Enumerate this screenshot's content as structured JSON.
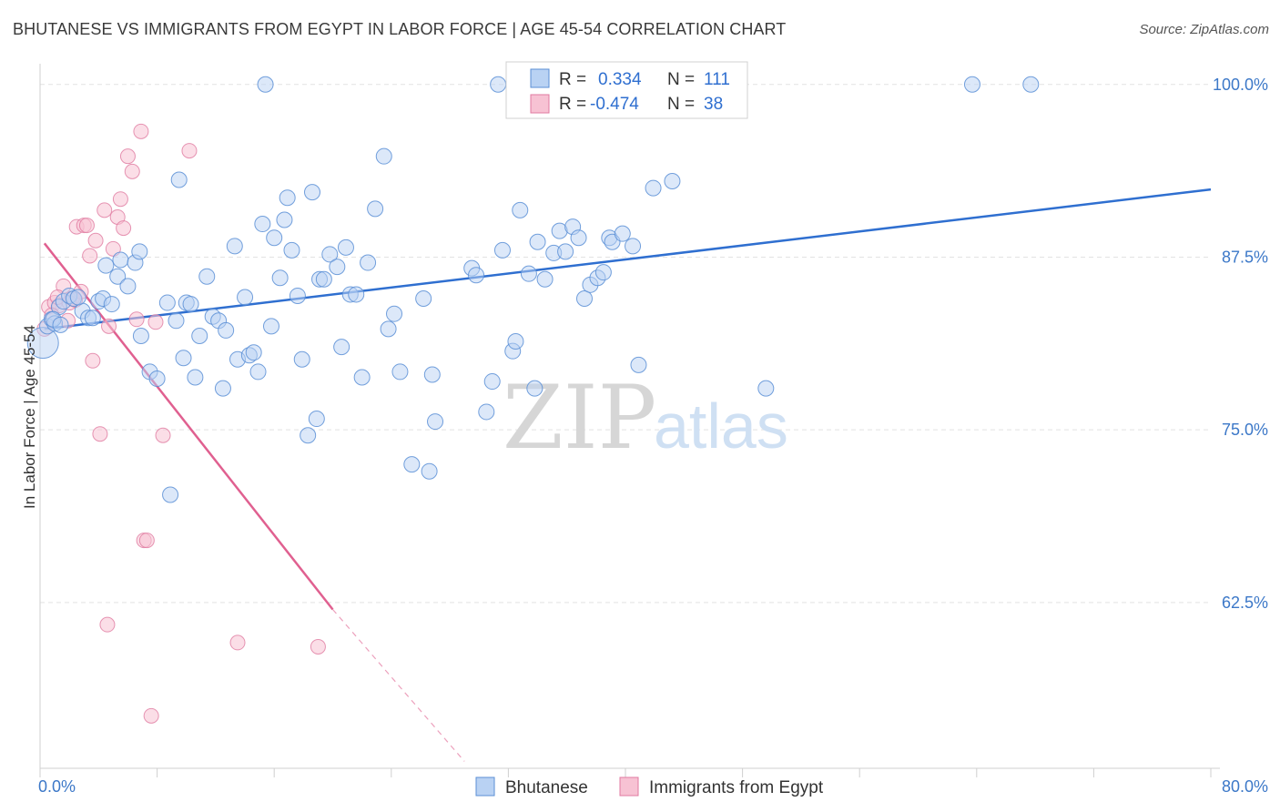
{
  "title": "BHUTANESE VS IMMIGRANTS FROM EGYPT IN LABOR FORCE | AGE 45-54 CORRELATION CHART",
  "source": "Source: ZipAtlas.com",
  "watermark": {
    "zip": "ZIP",
    "atlas": "atlas"
  },
  "colors": {
    "blue": "#5b8fd6",
    "blue_fill": "#b9d2f3",
    "pink": "#e07aa0",
    "pink_fill": "#f7c2d3",
    "blue_line": "#2f6fd0",
    "pink_line": "#e06090"
  },
  "legend": {
    "rows": [
      {
        "r_label": "R =",
        "r_value": "0.334",
        "n_label": "N =",
        "n_value": "111"
      },
      {
        "r_label": "R =",
        "r_value": "-0.474",
        "n_label": "N =",
        "n_value": "38"
      }
    ]
  },
  "chart_data": {
    "type": "scatter",
    "xlabel": "",
    "ylabel": "In Labor Force | Age 45-54",
    "xlim": [
      0,
      80
    ],
    "ylim": [
      50.5,
      101.5
    ],
    "x_tick_labels": [
      "0.0%",
      "80.0%"
    ],
    "y_ticks": [
      62.5,
      75.0,
      87.5,
      100.0
    ],
    "y_tick_labels": [
      "62.5%",
      "75.0%",
      "87.5%",
      "100.0%"
    ],
    "grid": true,
    "legend_position": "top-center",
    "series": [
      {
        "name": "Bhutanese",
        "trend": {
          "x": [
            0.3,
            80.0
          ],
          "y": [
            82.3,
            92.4
          ]
        },
        "points": [
          [
            0.2,
            81.3
          ],
          [
            0.5,
            82.5
          ],
          [
            0.8,
            83.0
          ],
          [
            1.0,
            82.7
          ],
          [
            1.3,
            83.9
          ],
          [
            1.6,
            84.3
          ],
          [
            2.0,
            84.7
          ],
          [
            2.3,
            84.5
          ],
          [
            2.9,
            83.6
          ],
          [
            3.3,
            83.1
          ],
          [
            3.6,
            83.1
          ],
          [
            4.0,
            84.3
          ],
          [
            4.3,
            84.5
          ],
          [
            4.5,
            86.9
          ],
          [
            4.9,
            84.1
          ],
          [
            5.3,
            86.1
          ],
          [
            5.5,
            87.3
          ],
          [
            6.0,
            85.4
          ],
          [
            6.5,
            87.1
          ],
          [
            6.8,
            87.9
          ],
          [
            6.9,
            81.8
          ],
          [
            7.5,
            79.2
          ],
          [
            8.0,
            78.7
          ],
          [
            8.7,
            84.2
          ],
          [
            8.9,
            70.3
          ],
          [
            9.3,
            82.9
          ],
          [
            9.5,
            93.1
          ],
          [
            9.8,
            80.2
          ],
          [
            10.0,
            84.2
          ],
          [
            10.3,
            84.1
          ],
          [
            10.6,
            78.8
          ],
          [
            10.9,
            81.8
          ],
          [
            11.4,
            86.1
          ],
          [
            11.8,
            83.2
          ],
          [
            12.2,
            82.9
          ],
          [
            12.5,
            78.0
          ],
          [
            12.7,
            82.2
          ],
          [
            13.3,
            88.3
          ],
          [
            13.5,
            80.1
          ],
          [
            14.0,
            84.6
          ],
          [
            14.3,
            80.4
          ],
          [
            14.6,
            80.6
          ],
          [
            14.9,
            79.2
          ],
          [
            15.2,
            89.9
          ],
          [
            15.4,
            100.0
          ],
          [
            15.8,
            82.5
          ],
          [
            16.0,
            88.9
          ],
          [
            16.4,
            86.0
          ],
          [
            16.7,
            90.2
          ],
          [
            16.9,
            91.8
          ],
          [
            17.2,
            88.0
          ],
          [
            17.6,
            84.7
          ],
          [
            17.9,
            80.1
          ],
          [
            18.3,
            74.6
          ],
          [
            18.6,
            92.2
          ],
          [
            18.9,
            75.8
          ],
          [
            19.1,
            85.9
          ],
          [
            19.4,
            85.9
          ],
          [
            19.8,
            87.7
          ],
          [
            20.3,
            86.8
          ],
          [
            20.6,
            81.0
          ],
          [
            20.9,
            88.2
          ],
          [
            21.2,
            84.8
          ],
          [
            21.6,
            84.8
          ],
          [
            22.0,
            78.8
          ],
          [
            22.4,
            87.1
          ],
          [
            22.9,
            91.0
          ],
          [
            23.5,
            94.8
          ],
          [
            23.8,
            82.3
          ],
          [
            24.2,
            83.4
          ],
          [
            24.6,
            79.2
          ],
          [
            25.4,
            72.5
          ],
          [
            26.2,
            84.5
          ],
          [
            26.6,
            72.0
          ],
          [
            26.8,
            79.0
          ],
          [
            27.0,
            75.6
          ],
          [
            29.5,
            86.7
          ],
          [
            29.8,
            86.2
          ],
          [
            30.5,
            76.3
          ],
          [
            30.9,
            78.5
          ],
          [
            31.3,
            100.0
          ],
          [
            31.6,
            88.0
          ],
          [
            32.3,
            80.7
          ],
          [
            32.5,
            81.4
          ],
          [
            32.8,
            90.9
          ],
          [
            33.4,
            86.3
          ],
          [
            33.8,
            78.0
          ],
          [
            34.0,
            88.6
          ],
          [
            34.5,
            85.9
          ],
          [
            35.1,
            87.8
          ],
          [
            35.5,
            89.4
          ],
          [
            35.9,
            87.9
          ],
          [
            36.4,
            89.7
          ],
          [
            36.8,
            88.9
          ],
          [
            37.2,
            84.5
          ],
          [
            37.6,
            85.5
          ],
          [
            38.1,
            86.0
          ],
          [
            38.5,
            86.4
          ],
          [
            38.9,
            88.9
          ],
          [
            39.1,
            88.6
          ],
          [
            39.8,
            89.2
          ],
          [
            40.5,
            88.3
          ],
          [
            40.9,
            79.7
          ],
          [
            41.9,
            92.5
          ],
          [
            43.2,
            93.0
          ],
          [
            49.6,
            78.0
          ],
          [
            63.7,
            100.0
          ],
          [
            67.7,
            100.0
          ],
          [
            0.9,
            83.0
          ],
          [
            1.4,
            82.6
          ],
          [
            2.6,
            84.6
          ]
        ]
      },
      {
        "name": "Immigrants from Egypt",
        "trend": {
          "x": [
            0.3,
            20.0
          ],
          "y": [
            88.5,
            62.0
          ]
        },
        "trend_dashed": {
          "x": [
            20.0,
            29.0
          ],
          "y": [
            62.0,
            51.0
          ]
        },
        "points": [
          [
            0.3,
            82.3
          ],
          [
            0.6,
            83.9
          ],
          [
            1.0,
            84.2
          ],
          [
            1.3,
            84.0
          ],
          [
            1.6,
            85.4
          ],
          [
            1.9,
            82.9
          ],
          [
            2.2,
            84.5
          ],
          [
            2.5,
            89.7
          ],
          [
            2.8,
            85.0
          ],
          [
            3.0,
            89.8
          ],
          [
            3.2,
            89.8
          ],
          [
            3.4,
            87.6
          ],
          [
            3.6,
            80.0
          ],
          [
            3.8,
            88.7
          ],
          [
            4.1,
            74.7
          ],
          [
            4.4,
            90.9
          ],
          [
            4.7,
            82.5
          ],
          [
            5.0,
            88.1
          ],
          [
            5.3,
            90.4
          ],
          [
            5.5,
            91.7
          ],
          [
            5.7,
            89.6
          ],
          [
            6.0,
            94.8
          ],
          [
            6.3,
            93.7
          ],
          [
            6.6,
            83.0
          ],
          [
            6.9,
            96.6
          ],
          [
            7.1,
            67.0
          ],
          [
            7.3,
            67.0
          ],
          [
            7.6,
            54.3
          ],
          [
            7.9,
            82.8
          ],
          [
            8.4,
            74.6
          ],
          [
            10.2,
            95.2
          ],
          [
            13.5,
            59.6
          ],
          [
            19.0,
            59.3
          ],
          [
            4.6,
            60.9
          ],
          [
            0.8,
            83.3
          ],
          [
            1.2,
            84.6
          ],
          [
            2.0,
            84.2
          ],
          [
            2.4,
            84.4
          ]
        ]
      }
    ]
  },
  "bottom_legend": [
    "Bhutanese",
    "Immigrants from Egypt"
  ]
}
